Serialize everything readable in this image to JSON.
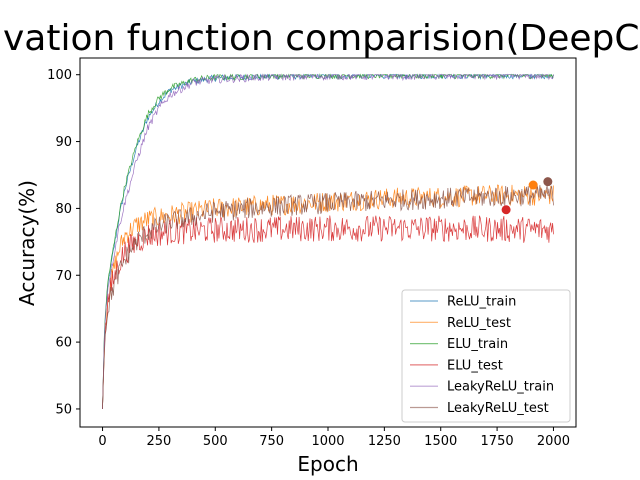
{
  "chart_data": {
    "type": "line",
    "title": "ivation function comparision(DeepConv",
    "xlabel": "Epoch",
    "ylabel": "Accuracy(%)",
    "xlim": [
      -100,
      2100
    ],
    "ylim": [
      47.3,
      102.5
    ],
    "xticks": [
      0,
      250,
      500,
      750,
      1000,
      1250,
      1500,
      1750,
      2000
    ],
    "yticks": [
      50,
      60,
      70,
      80,
      90,
      100
    ],
    "grid": false,
    "legend_position": "lower-right",
    "series": [
      {
        "name": "ReLU_train",
        "color": "#1f77b4",
        "points": [
          [
            0,
            50
          ],
          [
            10,
            63
          ],
          [
            25,
            69
          ],
          [
            50,
            74
          ],
          [
            75,
            79
          ],
          [
            100,
            83
          ],
          [
            150,
            89
          ],
          [
            200,
            93.5
          ],
          [
            250,
            96
          ],
          [
            300,
            97.7
          ],
          [
            400,
            99
          ],
          [
            500,
            99.5
          ],
          [
            750,
            99.8
          ],
          [
            1000,
            99.85
          ],
          [
            1500,
            99.9
          ],
          [
            2000,
            99.9
          ]
        ],
        "noise": 0.5
      },
      {
        "name": "ReLU_test",
        "color": "#ff7f0e",
        "points": [
          [
            0,
            50
          ],
          [
            10,
            62
          ],
          [
            25,
            67
          ],
          [
            50,
            71
          ],
          [
            75,
            74
          ],
          [
            100,
            76
          ],
          [
            150,
            77.5
          ],
          [
            200,
            78.3
          ],
          [
            300,
            79
          ],
          [
            500,
            80
          ],
          [
            750,
            80.5
          ],
          [
            1000,
            81
          ],
          [
            1250,
            81.5
          ],
          [
            1500,
            81.7
          ],
          [
            1750,
            82
          ],
          [
            2000,
            82
          ]
        ],
        "noise": 1.6
      },
      {
        "name": "ELU_train",
        "color": "#2ca02c",
        "points": [
          [
            0,
            50
          ],
          [
            10,
            63.5
          ],
          [
            25,
            69.5
          ],
          [
            50,
            74.5
          ],
          [
            75,
            79.5
          ],
          [
            100,
            83.5
          ],
          [
            150,
            89.5
          ],
          [
            200,
            94
          ],
          [
            250,
            96.5
          ],
          [
            300,
            98
          ],
          [
            400,
            99.2
          ],
          [
            500,
            99.6
          ],
          [
            750,
            99.85
          ],
          [
            1000,
            99.9
          ],
          [
            1500,
            99.9
          ],
          [
            2000,
            99.9
          ]
        ],
        "noise": 0.5
      },
      {
        "name": "ELU_test",
        "color": "#d62728",
        "points": [
          [
            0,
            50
          ],
          [
            10,
            62
          ],
          [
            25,
            66.5
          ],
          [
            50,
            69.5
          ],
          [
            75,
            72
          ],
          [
            100,
            73.5
          ],
          [
            150,
            75
          ],
          [
            200,
            76
          ],
          [
            300,
            76.5
          ],
          [
            500,
            76.8
          ],
          [
            1000,
            77
          ],
          [
            1500,
            77
          ],
          [
            2000,
            76.8
          ]
        ],
        "noise": 2.0
      },
      {
        "name": "LeakyReLU_train",
        "color": "#9467bd",
        "points": [
          [
            0,
            50
          ],
          [
            10,
            63
          ],
          [
            25,
            68.5
          ],
          [
            50,
            73
          ],
          [
            75,
            77.5
          ],
          [
            100,
            81
          ],
          [
            150,
            87
          ],
          [
            200,
            92
          ],
          [
            250,
            95
          ],
          [
            300,
            97
          ],
          [
            400,
            98.8
          ],
          [
            500,
            99.3
          ],
          [
            750,
            99.7
          ],
          [
            1000,
            99.8
          ],
          [
            1500,
            99.85
          ],
          [
            2000,
            99.9
          ]
        ],
        "noise": 0.6
      },
      {
        "name": "LeakyReLU_test",
        "color": "#8c564b",
        "points": [
          [
            0,
            50
          ],
          [
            10,
            61
          ],
          [
            25,
            65.5
          ],
          [
            50,
            68.5
          ],
          [
            75,
            70.5
          ],
          [
            100,
            72.5
          ],
          [
            150,
            75
          ],
          [
            200,
            76.5
          ],
          [
            300,
            78
          ],
          [
            500,
            79.5
          ],
          [
            750,
            80.3
          ],
          [
            1000,
            80.8
          ],
          [
            1250,
            81.2
          ],
          [
            1500,
            81.5
          ],
          [
            1750,
            81.8
          ],
          [
            2000,
            82
          ]
        ],
        "noise": 1.6
      }
    ],
    "markers": [
      {
        "series": "ReLU_test",
        "x": 1910,
        "y": 83.5,
        "color": "#ff7f0e"
      },
      {
        "series": "ELU_test",
        "x": 1790,
        "y": 79.8,
        "color": "#d62728"
      },
      {
        "series": "LeakyReLU_test",
        "x": 1975,
        "y": 84,
        "color": "#8c564b"
      }
    ]
  }
}
